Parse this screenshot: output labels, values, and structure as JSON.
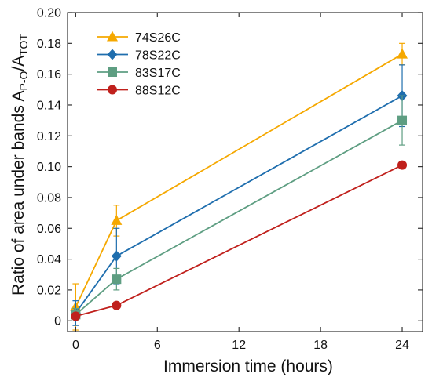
{
  "chart_data": {
    "type": "line",
    "xlabel": "Immersion time (hours)",
    "ylabel_parts": {
      "main": "Ratio of area under bands A",
      "sub1": "P-O",
      "slash": "/A",
      "sub2": "TOT"
    },
    "x": [
      0,
      3,
      24
    ],
    "xlim": [
      -0.6,
      25.5
    ],
    "ylim": [
      -0.007,
      0.2
    ],
    "xticks": [
      0,
      6,
      12,
      18,
      24
    ],
    "xtick_labels": [
      "0",
      "6",
      "12",
      "18",
      "24"
    ],
    "yticks": [
      0,
      0.02,
      0.04,
      0.06,
      0.08,
      0.1,
      0.12,
      0.14,
      0.16,
      0.18,
      0.2
    ],
    "ytick_labels": [
      "0",
      "0.02",
      "0.04",
      "0.06",
      "0.08",
      "0.10",
      "0.12",
      "0.14",
      "0.16",
      "0.18",
      "0.20"
    ],
    "grid": false,
    "legend_position": "top-left",
    "series": [
      {
        "name": "74S26C",
        "color": "#F5A800",
        "marker": "triangle",
        "values": [
          0.009,
          0.065,
          0.173
        ],
        "errors": [
          0.015,
          0.01,
          0.007
        ]
      },
      {
        "name": "78S22C",
        "color": "#1F6EAE",
        "marker": "diamond",
        "values": [
          0.005,
          0.042,
          0.146
        ],
        "errors": [
          0.008,
          0.018,
          0.02
        ]
      },
      {
        "name": "83S17C",
        "color": "#5E9E82",
        "marker": "square",
        "values": [
          0.004,
          0.027,
          0.13
        ],
        "errors": [
          0.004,
          0.007,
          0.016
        ]
      },
      {
        "name": "88S12C",
        "color": "#C0201C",
        "marker": "circle",
        "values": [
          0.003,
          0.01,
          0.101
        ],
        "errors": [
          0,
          0,
          0
        ]
      }
    ]
  }
}
